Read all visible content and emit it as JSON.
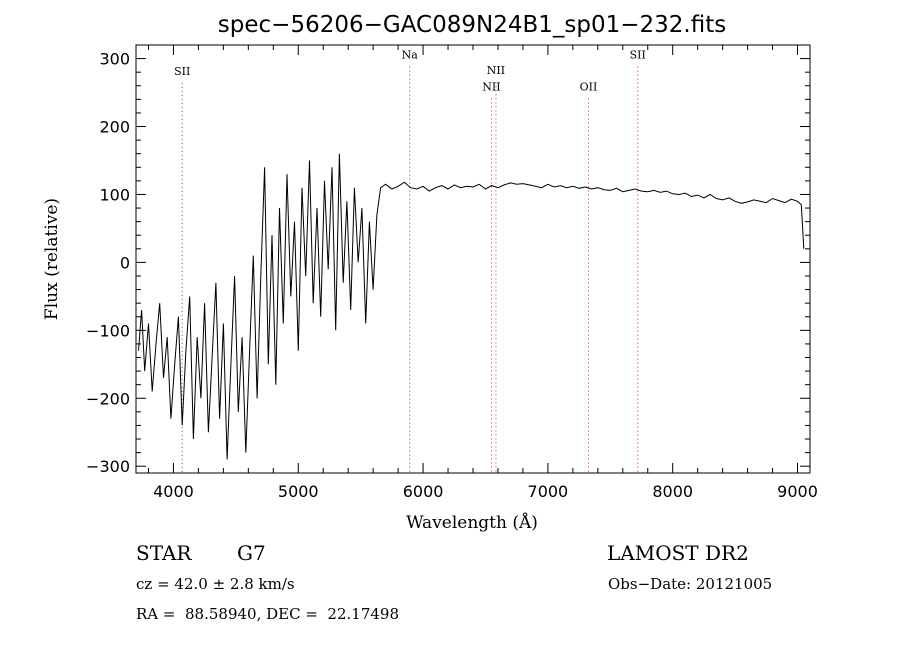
{
  "chart_data": {
    "type": "line",
    "title": "spec−56206−GAC089N24B1_sp01−232.fits",
    "xlabel": "Wavelength (Å)",
    "ylabel": "Flux (relative)",
    "xlim": [
      3700,
      9100
    ],
    "ylim": [
      -310,
      320
    ],
    "x_ticks": [
      4000,
      5000,
      6000,
      7000,
      8000,
      9000
    ],
    "y_ticks": [
      -300,
      -200,
      -100,
      0,
      100,
      200,
      300
    ],
    "x_tick_labels": [
      "4000",
      "5000",
      "6000",
      "7000",
      "8000",
      "9000"
    ],
    "y_tick_labels": [
      "−300",
      "−200",
      "−100",
      "0",
      "100",
      "200",
      "300"
    ],
    "grid": false,
    "series": [
      {
        "color": "#000000",
        "x": [
          3720,
          3745,
          3770,
          3800,
          3830,
          3860,
          3890,
          3920,
          3950,
          3980,
          4010,
          4040,
          4070,
          4100,
          4130,
          4160,
          4190,
          4220,
          4250,
          4280,
          4310,
          4340,
          4370,
          4400,
          4430,
          4460,
          4490,
          4520,
          4550,
          4580,
          4610,
          4640,
          4670,
          4700,
          4730,
          4760,
          4790,
          4820,
          4850,
          4880,
          4910,
          4940,
          4970,
          5000,
          5030,
          5060,
          5090,
          5120,
          5150,
          5180,
          5210,
          5240,
          5270,
          5300,
          5330,
          5360,
          5390,
          5420,
          5450,
          5480,
          5510,
          5540,
          5570,
          5600,
          5630,
          5660,
          5700,
          5750,
          5800,
          5850,
          5900,
          5950,
          6000,
          6050,
          6100,
          6150,
          6200,
          6250,
          6300,
          6350,
          6400,
          6450,
          6500,
          6550,
          6600,
          6650,
          6700,
          6750,
          6800,
          6850,
          6900,
          6950,
          7000,
          7050,
          7100,
          7150,
          7200,
          7250,
          7300,
          7350,
          7400,
          7450,
          7500,
          7550,
          7600,
          7650,
          7700,
          7750,
          7800,
          7850,
          7900,
          7950,
          8000,
          8050,
          8100,
          8150,
          8200,
          8250,
          8300,
          8350,
          8400,
          8450,
          8500,
          8550,
          8600,
          8650,
          8700,
          8750,
          8800,
          8850,
          8900,
          8950,
          9000,
          9030,
          9050
        ],
        "values": [
          -130,
          -70,
          -160,
          -90,
          -190,
          -120,
          -60,
          -170,
          -110,
          -230,
          -150,
          -80,
          -240,
          -130,
          -50,
          -260,
          -110,
          -200,
          -60,
          -250,
          -140,
          -30,
          -230,
          -90,
          -290,
          -150,
          -20,
          -220,
          -110,
          -280,
          -130,
          10,
          -200,
          -20,
          140,
          -150,
          40,
          -180,
          80,
          -90,
          130,
          -50,
          60,
          -130,
          110,
          -20,
          150,
          -60,
          80,
          -80,
          120,
          -10,
          140,
          -100,
          160,
          -30,
          90,
          -70,
          110,
          0,
          80,
          -90,
          60,
          -40,
          70,
          110,
          115,
          108,
          112,
          118,
          110,
          108,
          112,
          105,
          110,
          113,
          108,
          114,
          110,
          112,
          111,
          115,
          108,
          113,
          110,
          114,
          117,
          115,
          116,
          114,
          112,
          110,
          115,
          111,
          113,
          110,
          112,
          109,
          111,
          108,
          110,
          107,
          106,
          109,
          104,
          106,
          108,
          105,
          104,
          106,
          103,
          105,
          101,
          100,
          102,
          97,
          99,
          95,
          100,
          94,
          92,
          95,
          90,
          87,
          89,
          92,
          90,
          88,
          94,
          91,
          88,
          93,
          90,
          85,
          20
        ]
      }
    ],
    "annotations": [
      {
        "label": "SII",
        "x": 4070,
        "label_y": 276
      },
      {
        "label": "Na",
        "x": 5893,
        "label_y": 300
      },
      {
        "label": "NII",
        "x": 6548,
        "label_y": 253
      },
      {
        "label": "NII",
        "x": 6584,
        "label_y": 277
      },
      {
        "label": "OII",
        "x": 7325,
        "label_y": 253
      },
      {
        "label": "SII",
        "x": 7720,
        "label_y": 300
      }
    ]
  },
  "info": {
    "object_class": "STAR",
    "subclass": "G7",
    "survey": "LAMOST DR2",
    "cz": "cz = 42.0 ± 2.8 km/s",
    "obs_date": "Obs−Date: 20121005",
    "coords": "RA =  88.58940, DEC =  22.17498"
  }
}
